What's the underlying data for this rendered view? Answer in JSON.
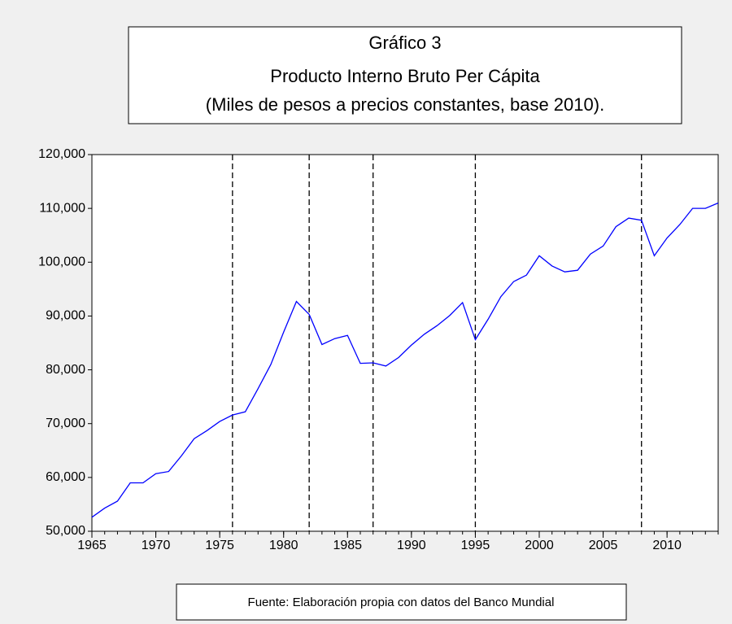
{
  "chart_data": {
    "type": "line",
    "title": "Gráfico 3",
    "subtitle": [
      "Producto Interno Bruto Per Cápita",
      "(Miles de pesos a precios constantes, base 2010)."
    ],
    "source": "Fuente: Elaboración propia con datos del Banco Mundial",
    "x": [
      1965,
      1966,
      1967,
      1968,
      1969,
      1970,
      1971,
      1972,
      1973,
      1974,
      1975,
      1976,
      1977,
      1978,
      1979,
      1980,
      1981,
      1982,
      1983,
      1984,
      1985,
      1986,
      1987,
      1988,
      1989,
      1990,
      1991,
      1992,
      1993,
      1994,
      1995,
      1996,
      1997,
      1998,
      1999,
      2000,
      2001,
      2002,
      2003,
      2004,
      2005,
      2006,
      2007,
      2008,
      2009,
      2010,
      2011,
      2012,
      2013,
      2014
    ],
    "series": [
      {
        "color": "#0000ff",
        "values": [
          52600,
          54300,
          55600,
          59000,
          59000,
          60700,
          61100,
          64000,
          67200,
          68700,
          70400,
          71600,
          72200,
          76500,
          81000,
          87000,
          92700,
          90300,
          84700,
          85800,
          86400,
          81200,
          81300,
          80700,
          82300,
          84600,
          86600,
          88200,
          90100,
          92500,
          85600,
          89400,
          93600,
          96400,
          97600,
          101200,
          99300,
          98200,
          98500,
          101500,
          103000,
          106600,
          108200,
          107800,
          101200,
          104500,
          107000,
          110000,
          110000,
          111000
        ]
      }
    ],
    "xlim": [
      1965,
      2014
    ],
    "xticks": [
      1965,
      1970,
      1975,
      1980,
      1985,
      1990,
      1995,
      2000,
      2005,
      2010
    ],
    "ylim": [
      50000,
      120000
    ],
    "yticks": [
      {
        "value": 50000,
        "label": "50,000"
      },
      {
        "value": 60000,
        "label": "60,000"
      },
      {
        "value": 70000,
        "label": "70,000"
      },
      {
        "value": 80000,
        "label": "80,000"
      },
      {
        "value": 90000,
        "label": "90,000"
      },
      {
        "value": 100000,
        "label": "100,000"
      },
      {
        "value": 110000,
        "label": "110,000"
      },
      {
        "value": 120000,
        "label": "120,000"
      }
    ],
    "reference_lines": [
      1976,
      1982,
      1987,
      1995,
      2008
    ]
  }
}
